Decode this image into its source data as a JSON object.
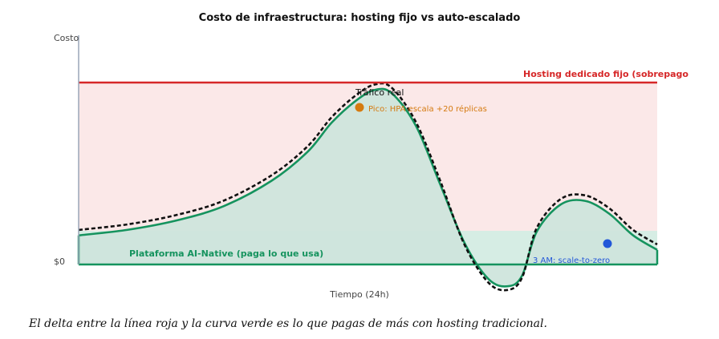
{
  "chart_data": {
    "type": "area",
    "title": "Costo de infraestructura: hosting fijo vs auto-escalado",
    "xlabel": "Tiempo (24h)",
    "ylabel": "Costo",
    "ytick_labels": [
      "$0"
    ],
    "xlim": [
      0,
      24
    ],
    "ylim": [
      -0.7,
      6.2
    ],
    "fixed_level": 5.0,
    "series": [
      {
        "name": "Hosting dedicado fijo (sobrepago",
        "style": "solid-line",
        "color": "#d62728",
        "x": [
          0,
          24
        ],
        "y": [
          5.0,
          5.0
        ]
      },
      {
        "name": "Plataforma AI-Native (paga lo que usa)",
        "style": "filled-area",
        "color": "#15935e",
        "x": [
          0,
          2,
          4,
          6,
          8,
          9.5,
          10.5,
          11.5,
          12.3,
          13,
          14,
          15,
          16,
          17,
          17.8,
          18.4,
          19,
          20,
          21,
          22,
          23,
          24
        ],
        "y": [
          0.8,
          0.95,
          1.2,
          1.6,
          2.3,
          3.1,
          3.9,
          4.5,
          4.8,
          4.7,
          3.8,
          2.2,
          0.6,
          -0.4,
          -0.6,
          -0.3,
          0.9,
          1.65,
          1.75,
          1.4,
          0.8,
          0.4
        ]
      },
      {
        "name": "Tráfico real",
        "style": "dashed-line",
        "color": "#111111",
        "x": [
          0,
          2,
          4,
          6,
          8,
          9.5,
          10.5,
          11.5,
          12.3,
          13,
          14,
          15,
          16,
          17,
          17.8,
          18.4,
          19,
          20,
          21,
          22,
          23,
          24
        ],
        "y": [
          0.95,
          1.1,
          1.35,
          1.75,
          2.45,
          3.25,
          4.05,
          4.65,
          4.95,
          4.85,
          3.9,
          2.3,
          0.55,
          -0.5,
          -0.7,
          -0.35,
          1.0,
          1.8,
          1.9,
          1.55,
          0.95,
          0.55
        ]
      }
    ],
    "annotations": [
      {
        "text": "Hosting dedicado fijo (sobrepago",
        "color": "#d62728",
        "x": 24,
        "y": 5.3
      },
      {
        "text": "Tráfico real",
        "color": "#111111",
        "x": 11.5,
        "y": 4.95
      },
      {
        "text": "Pico: HPA escala +20 réplicas",
        "color": "#d57a0f",
        "x": 12.0,
        "y": 4.3,
        "marker": true
      },
      {
        "text": "Plataforma AI-Native (paga lo que usa)",
        "color": "#15935e",
        "x": 2.0,
        "y": 0.25
      },
      {
        "text": "3 AM: scale-to-zero",
        "color": "#2257d8",
        "x": 18.9,
        "y": 0.05
      }
    ],
    "markers": [
      {
        "label": "Pico",
        "color": "#d57a0f",
        "x": 11.65,
        "y": 4.5
      },
      {
        "label": "3 AM",
        "color": "#2257d8",
        "x": 22.0,
        "y": 0.6
      }
    ],
    "grid": false,
    "legend": "none"
  },
  "caption": "El delta entre la línea roja y la curva verde es lo que pagas de más con hosting tradicional."
}
